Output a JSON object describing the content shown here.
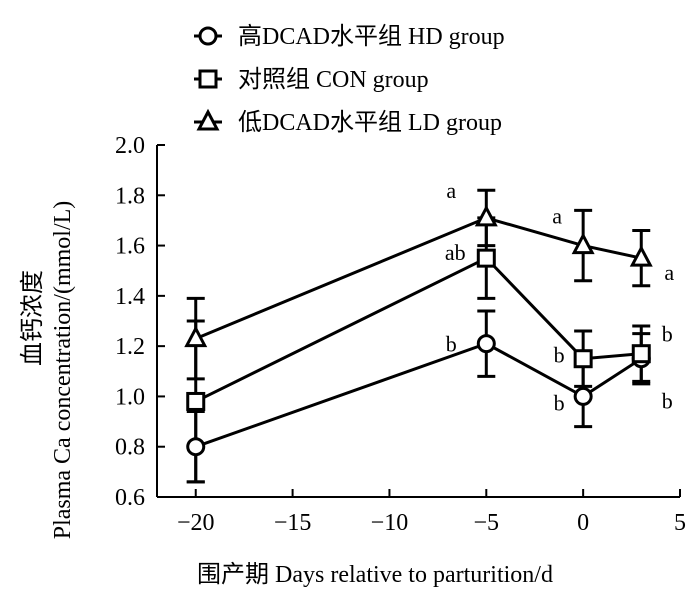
{
  "chart_data": {
    "type": "line",
    "xlabel": "围产期  Days relative to parturition/d",
    "ylabel_line1": "血钙浓度",
    "ylabel_line2": "Plasma Ca  concentration/(mmol/L)",
    "xlim": [
      -22,
      5
    ],
    "ylim": [
      0.6,
      2.0
    ],
    "x_ticks": [
      -20,
      -15,
      -10,
      -5,
      0,
      5
    ],
    "x_tick_labels": [
      "−20",
      "−15",
      "−10",
      "−5",
      "0",
      "5"
    ],
    "y_ticks": [
      0.6,
      0.8,
      1.0,
      1.2,
      1.4,
      1.6,
      1.8,
      2.0
    ],
    "y_tick_labels": [
      "0.6",
      "0.8",
      "1.0",
      "1.2",
      "1.4",
      "1.6",
      "1.8",
      "2.0"
    ],
    "legend_position": "top",
    "x": [
      -20,
      -5,
      0,
      3
    ],
    "series": [
      {
        "name": "高DCAD水平组 HD group",
        "marker": "circle",
        "values": [
          0.8,
          1.21,
          1.0,
          1.15
        ],
        "errors": [
          0.14,
          0.13,
          0.12,
          0.1
        ],
        "labels": [
          "",
          "b",
          "b",
          "b"
        ]
      },
      {
        "name": "对照组 CON group",
        "marker": "square",
        "values": [
          0.98,
          1.55,
          1.15,
          1.17
        ],
        "errors": [
          0.32,
          0.16,
          0.11,
          0.11
        ],
        "labels": [
          "",
          "ab",
          "b",
          "b"
        ]
      },
      {
        "name": "低DCAD水平组 LD group",
        "marker": "triangle",
        "values": [
          1.23,
          1.71,
          1.6,
          1.55
        ],
        "errors": [
          0.16,
          0.11,
          0.14,
          0.11
        ],
        "labels": [
          "",
          "a",
          "a",
          "a"
        ]
      }
    ]
  }
}
